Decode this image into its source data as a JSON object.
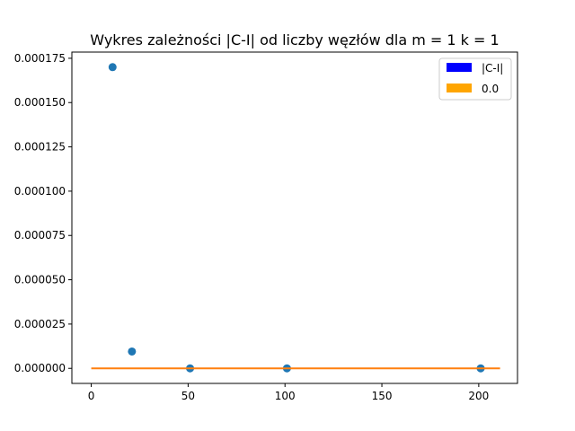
{
  "chart_data": {
    "type": "scatter",
    "title": "Wykres zależności |C-I| od liczby węzłów dla m = 1 k = 1",
    "xlabel": "",
    "ylabel": "",
    "xlim": [
      -10,
      220
    ],
    "ylim": [
      -8.5e-06,
      0.0001785
    ],
    "xticks": [
      0,
      50,
      100,
      150,
      200
    ],
    "xtick_labels": [
      "0",
      "50",
      "100",
      "150",
      "200"
    ],
    "yticks": [
      0,
      2.5e-05,
      5e-05,
      7.5e-05,
      0.0001,
      0.000125,
      0.00015,
      0.000175
    ],
    "ytick_labels": [
      "0.000000",
      "0.000025",
      "0.000050",
      "0.000075",
      "0.000100",
      "0.000125",
      "0.000150",
      "0.000175"
    ],
    "grid": false,
    "legend_position": "top-right",
    "series": [
      {
        "name": "|C-I|",
        "kind": "scatter",
        "color": "#1f77b4",
        "legend_color": "#0000ff",
        "x": [
          11,
          21,
          51,
          101,
          201
        ],
        "y": [
          0.00017,
          9.5e-06,
          0.0,
          0.0,
          0.0
        ]
      },
      {
        "name": "0.0",
        "kind": "line",
        "color": "#ff7f0e",
        "legend_color": "#ffa500",
        "x": [
          0,
          211
        ],
        "y": [
          0.0,
          0.0
        ]
      }
    ]
  }
}
